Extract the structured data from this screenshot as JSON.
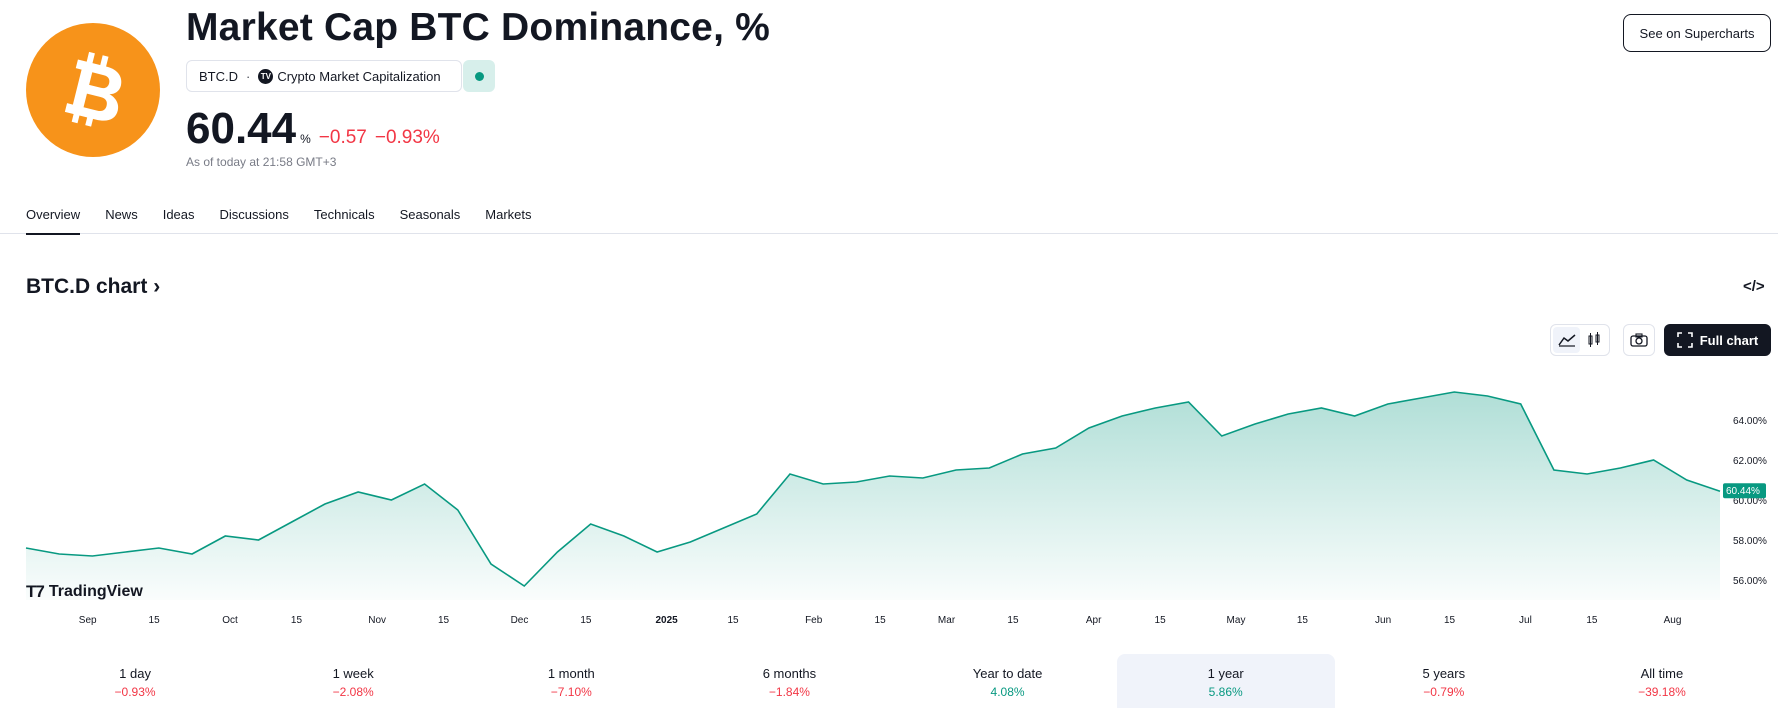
{
  "header": {
    "title": "Market Cap BTC Dominance, %",
    "symbol": "BTC.D",
    "exchange": "Crypto Market Capitalization",
    "price": "60.44",
    "unit": "%",
    "change_abs": "−0.57",
    "change_pct": "−0.93%",
    "as_of": "As of today at 21:58 GMT+3",
    "supercharts_label": "See on Supercharts",
    "market_status": "open",
    "logo_icon": "bitcoin-icon"
  },
  "tabs": [
    {
      "label": "Overview",
      "active": true
    },
    {
      "label": "News"
    },
    {
      "label": "Ideas"
    },
    {
      "label": "Discussions"
    },
    {
      "label": "Technicals"
    },
    {
      "label": "Seasonals"
    },
    {
      "label": "Markets"
    }
  ],
  "chart_section": {
    "title": "BTC.D chart",
    "full_chart_label": "Full chart",
    "watermark": "TradingView",
    "icons": [
      "code-embed-icon",
      "area-chart-icon",
      "candles-icon",
      "camera-icon",
      "fullscreen-icon"
    ]
  },
  "chart_data": {
    "type": "area",
    "x_ticks": [
      "Sep",
      "15",
      "Oct",
      "15",
      "Nov",
      "15",
      "Dec",
      "15",
      "2025",
      "15",
      "Feb",
      "15",
      "Mar",
      "15",
      "Apr",
      "15",
      "May",
      "15",
      "Jun",
      "15",
      "Jul",
      "15",
      "Aug"
    ],
    "y_ticks": [
      "64.00%",
      "62.00%",
      "60.00%",
      "58.00%",
      "56.00%"
    ],
    "ylim": [
      55.0,
      66.0
    ],
    "last_value_label": "60.44%",
    "x": [
      "2024-08-19",
      "2024-08-26",
      "2024-09-02",
      "2024-09-09",
      "2024-09-16",
      "2024-09-23",
      "2024-09-30",
      "2024-10-07",
      "2024-10-14",
      "2024-10-21",
      "2024-10-28",
      "2024-11-04",
      "2024-11-11",
      "2024-11-18",
      "2024-11-25",
      "2024-12-02",
      "2024-12-09",
      "2024-12-16",
      "2024-12-23",
      "2024-12-30",
      "2025-01-06",
      "2025-01-13",
      "2025-01-20",
      "2025-01-27",
      "2025-02-03",
      "2025-02-10",
      "2025-02-17",
      "2025-02-24",
      "2025-03-03",
      "2025-03-10",
      "2025-03-17",
      "2025-03-24",
      "2025-03-31",
      "2025-04-07",
      "2025-04-14",
      "2025-04-21",
      "2025-04-28",
      "2025-05-05",
      "2025-05-12",
      "2025-05-19",
      "2025-05-26",
      "2025-06-02",
      "2025-06-09",
      "2025-06-16",
      "2025-06-23",
      "2025-06-30",
      "2025-07-07",
      "2025-07-14",
      "2025-07-21",
      "2025-07-28",
      "2025-08-04",
      "2025-08-11"
    ],
    "values": [
      57.6,
      57.3,
      57.2,
      57.4,
      57.6,
      57.3,
      58.2,
      58.0,
      58.9,
      59.8,
      60.4,
      60.0,
      60.8,
      59.5,
      56.8,
      55.7,
      57.4,
      58.8,
      58.2,
      57.4,
      57.9,
      58.6,
      59.3,
      61.3,
      60.8,
      60.9,
      61.2,
      61.1,
      61.5,
      61.6,
      62.3,
      62.6,
      63.6,
      64.2,
      64.6,
      64.9,
      63.2,
      63.8,
      64.3,
      64.6,
      64.2,
      64.8,
      65.1,
      65.4,
      65.2,
      64.8,
      61.5,
      61.3,
      61.6,
      62.0,
      61.0,
      60.44
    ],
    "series": [
      {
        "values": "see values"
      }
    ],
    "color": "#089981"
  },
  "periods": [
    {
      "label": "1 day",
      "value": "−0.93%",
      "sign": "neg"
    },
    {
      "label": "1 week",
      "value": "−2.08%",
      "sign": "neg"
    },
    {
      "label": "1 month",
      "value": "−7.10%",
      "sign": "neg"
    },
    {
      "label": "6 months",
      "value": "−1.84%",
      "sign": "neg"
    },
    {
      "label": "Year to date",
      "value": "4.08%",
      "sign": "pos"
    },
    {
      "label": "1 year",
      "value": "5.86%",
      "sign": "pos",
      "active": true
    },
    {
      "label": "5 years",
      "value": "−0.79%",
      "sign": "neg"
    },
    {
      "label": "All time",
      "value": "−39.18%",
      "sign": "neg"
    }
  ]
}
